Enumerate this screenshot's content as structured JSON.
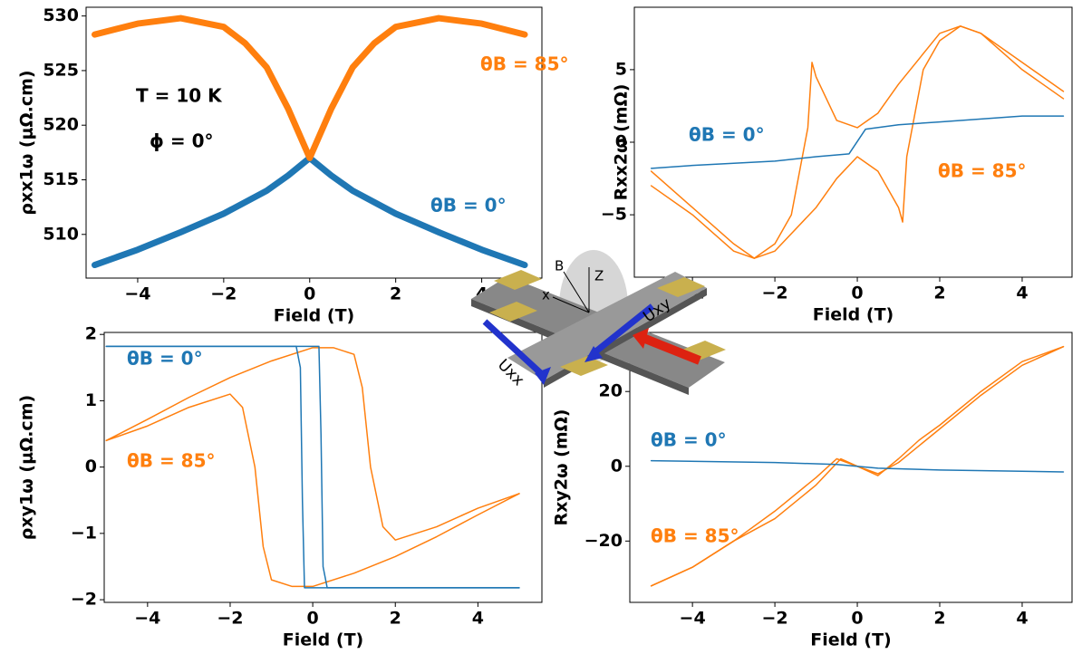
{
  "chart_data": [
    {
      "type": "line",
      "ylabel": "ρxx1ω (μΩ.cm)",
      "xlabel": "Field (T)",
      "xlim": [
        -5.2,
        5.4
      ],
      "ylim": [
        506,
        530.8
      ],
      "xticks": [
        {
          "value": -4,
          "label": "−4"
        },
        {
          "value": -2,
          "label": "−2"
        },
        0,
        2,
        4
      ],
      "yticks": [
        510,
        515,
        520,
        525,
        530
      ],
      "annotations": [
        {
          "text": "θB = 85°",
          "color": "#ff7f0e"
        },
        {
          "text": "T = 10 K",
          "color": "#000000"
        },
        {
          "text": "ϕ = 0°",
          "color": "#000000"
        },
        {
          "text": "θB = 0°",
          "color": "#1f77b4"
        }
      ],
      "series": [
        {
          "color": "#1f77b4",
          "x": [
            -5,
            -4,
            -3,
            -2,
            -1,
            -0.5,
            0,
            0.5,
            1,
            2,
            3,
            4,
            5
          ],
          "values": [
            507.2,
            508.6,
            510.2,
            511.9,
            514,
            515.4,
            517,
            515.4,
            514,
            511.9,
            510.2,
            508.6,
            507.2
          ]
        },
        {
          "color": "#ff7f0e",
          "x": [
            -5,
            -4,
            -3,
            -2,
            -1.5,
            -1,
            -0.5,
            0,
            0.5,
            1,
            1.5,
            2,
            3,
            4,
            5
          ],
          "values": [
            528.3,
            529.3,
            529.8,
            529,
            527.5,
            525.3,
            521.5,
            517,
            521.5,
            525.3,
            527.5,
            529,
            529.8,
            529.3,
            528.3
          ]
        }
      ]
    },
    {
      "type": "line",
      "ylabel": "Rxx2ω (mΩ)",
      "xlabel": "Field (T)",
      "xlim": [
        -5.41,
        5.21
      ],
      "ylim": [
        -9.3,
        9.3
      ],
      "xticks": [
        {
          "value": -4,
          "label": "−4"
        },
        {
          "value": -2,
          "label": "−2"
        },
        0,
        2,
        4
      ],
      "yticks": [
        {
          "value": -5,
          "label": "−5"
        },
        0,
        5
      ],
      "annotations": [
        {
          "text": "θB = 0°",
          "color": "#1f77b4"
        },
        {
          "text": "θB = 85°",
          "color": "#ff7f0e"
        }
      ],
      "series": [
        {
          "color": "#ff7f0e",
          "x": [
            -5,
            -4,
            -3,
            -2.5,
            -2,
            -1,
            -0.5,
            0,
            0.5,
            1,
            1.1,
            1.2,
            1.6,
            2,
            2.5,
            3,
            4,
            5
          ],
          "values": [
            -2,
            -4.5,
            -7,
            -8,
            -7.5,
            -4.5,
            -2.5,
            -1,
            -2,
            -4.5,
            -5.5,
            -1,
            5,
            7,
            8,
            7.5,
            5,
            3
          ]
        },
        {
          "color": "#ff7f0e",
          "x": [
            5,
            4,
            3,
            2.5,
            2,
            1,
            0.5,
            0,
            -0.5,
            -1,
            -1.1,
            -1.2,
            -1.6,
            -2,
            -2.5,
            -3,
            -4,
            -5
          ],
          "values": [
            3.5,
            5.5,
            7.5,
            8,
            7.5,
            4,
            2,
            1,
            1.5,
            4.5,
            5.5,
            1,
            -5,
            -7,
            -8,
            -7.5,
            -5,
            -3
          ]
        },
        {
          "color": "#1f77b4",
          "x": [
            -5,
            -4,
            -2,
            -1,
            -0.2,
            0.2,
            1,
            2,
            4,
            5
          ],
          "values": [
            -1.8,
            -1.6,
            -1.3,
            -1,
            -0.8,
            0.9,
            1.2,
            1.4,
            1.8,
            1.8
          ]
        }
      ]
    },
    {
      "type": "line",
      "ylabel": "ρxy1ω (μΩ.cm)",
      "xlabel": "Field (T)",
      "xlim": [
        -5.05,
        5.55
      ],
      "ylim": [
        -2.04,
        2.03
      ],
      "xticks": [
        {
          "value": -4,
          "label": "−4"
        },
        {
          "value": -2,
          "label": "−2"
        },
        0,
        2,
        4
      ],
      "yticks": [
        {
          "value": -2,
          "label": "−2"
        },
        {
          "value": -1,
          "label": "−1"
        },
        0,
        1,
        2
      ],
      "annotations": [
        {
          "text": "θB = 0°",
          "color": "#1f77b4"
        },
        {
          "text": "θB = 85°",
          "color": "#ff7f0e"
        }
      ],
      "series": [
        {
          "color": "#ff7f0e",
          "x": [
            -5,
            -4,
            -3,
            -2,
            -1.7,
            -1.4,
            -1.2,
            -1,
            -0.5,
            0,
            1,
            2,
            3,
            4,
            5
          ],
          "values": [
            0.4,
            0.62,
            0.9,
            1.1,
            0.9,
            0,
            -1.2,
            -1.7,
            -1.8,
            -1.8,
            -1.6,
            -1.35,
            -1.05,
            -0.72,
            -0.4
          ]
        },
        {
          "color": "#ff7f0e",
          "x": [
            5,
            4,
            3,
            2,
            1.7,
            1.4,
            1.2,
            1,
            0.5,
            0,
            -1,
            -2,
            -3,
            -4,
            -5
          ],
          "values": [
            -0.4,
            -0.62,
            -0.9,
            -1.1,
            -0.9,
            0,
            1.2,
            1.7,
            1.8,
            1.8,
            1.6,
            1.35,
            1.05,
            0.72,
            0.4
          ]
        },
        {
          "color": "#1f77b4",
          "x": [
            -5,
            0.15,
            0.2,
            0.25,
            0.35,
            5
          ],
          "values": [
            1.82,
            1.82,
            0.5,
            -1.5,
            -1.82,
            -1.82
          ]
        },
        {
          "color": "#1f77b4",
          "x": [
            5,
            -0.2,
            -0.25,
            -0.3,
            -0.4,
            -5
          ],
          "values": [
            -1.82,
            -1.82,
            -0.5,
            1.5,
            1.82,
            1.82
          ]
        }
      ]
    },
    {
      "type": "line",
      "ylabel": "Rxy2ω (mΩ)",
      "xlabel": "Field (T)",
      "xlim": [
        -5.52,
        5.21
      ],
      "ylim": [
        -36.4,
        35.8
      ],
      "xticks": [
        {
          "value": -4,
          "label": "−4"
        },
        {
          "value": -2,
          "label": "−2"
        },
        0,
        2,
        4
      ],
      "yticks": [
        {
          "value": -20,
          "label": "−20"
        },
        0,
        20
      ],
      "annotations": [
        {
          "text": "θB = 0°",
          "color": "#1f77b4"
        },
        {
          "text": "θB = 85°",
          "color": "#ff7f0e"
        }
      ],
      "series": [
        {
          "color": "#ff7f0e",
          "x": [
            -5,
            -4,
            -3,
            -2,
            -1,
            -0.5,
            0,
            0.5,
            1,
            2,
            3,
            4,
            5
          ],
          "values": [
            -32,
            -27,
            -20,
            -12,
            -3,
            2,
            0,
            -2,
            1,
            10,
            19,
            27,
            32
          ]
        },
        {
          "color": "#ff7f0e",
          "x": [
            -5,
            -4,
            -3,
            -2,
            -1,
            -0.4,
            0.5,
            1,
            1.5,
            2,
            3,
            4,
            5
          ],
          "values": [
            -32,
            -27,
            -20,
            -14,
            -5,
            2,
            -2.5,
            2,
            7,
            11,
            20,
            28,
            32
          ]
        },
        {
          "color": "#1f77b4",
          "x": [
            -5,
            -2,
            -0.5,
            0.5,
            2,
            5
          ],
          "values": [
            1.5,
            1,
            0.5,
            -0.5,
            -1,
            -1.5
          ]
        }
      ]
    }
  ],
  "illustration": {
    "labels": [
      "B",
      "Z",
      "x",
      "Uxy",
      "Uxx"
    ]
  }
}
